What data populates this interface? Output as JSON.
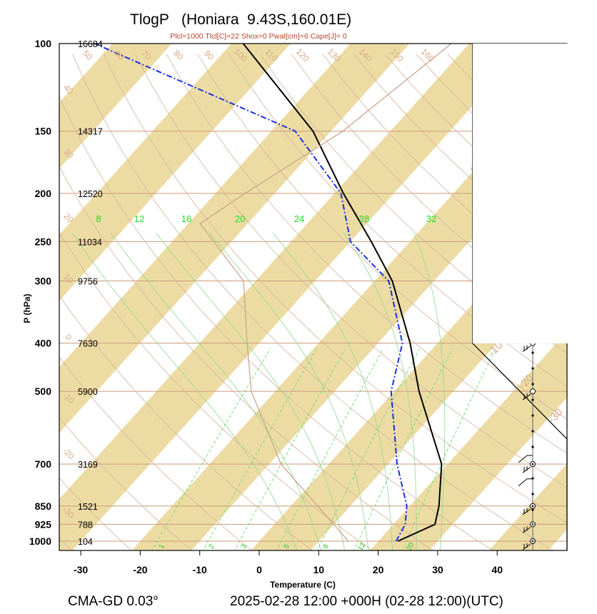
{
  "chart_data": {
    "type": "skew-t log-p",
    "title": "TlogP   (Honiara  9.43S,160.01E)",
    "subtitle": "Plcl=1000 Tlcl[C]=22 Shox=0 Pwat[cm]=6 Cape[J]= 0",
    "ylabel": "P (hPa)",
    "xlabel": "Temperature (C)",
    "footer_left": "CMA-GD 0.03°",
    "footer_right": "2025-02-28 12:00 +000H (02-28 12:00)(UTC)",
    "x_ticks": [
      "-30",
      "-20",
      "-10",
      "0",
      "10",
      "20",
      "30",
      "40"
    ],
    "x_values": [
      -30,
      -20,
      -10,
      0,
      10,
      20,
      30,
      40
    ],
    "pressure_levels": [
      {
        "p": 100,
        "label": "100",
        "height": "16684"
      },
      {
        "p": 150,
        "label": "150",
        "height": "14317"
      },
      {
        "p": 200,
        "label": "200",
        "height": "12520"
      },
      {
        "p": 250,
        "label": "250",
        "height": "11034"
      },
      {
        "p": 300,
        "label": "300",
        "height": "9756"
      },
      {
        "p": 400,
        "label": "400",
        "height": "7630"
      },
      {
        "p": 500,
        "label": "500",
        "height": "5900"
      },
      {
        "p": 700,
        "label": "700",
        "height": "3169"
      },
      {
        "p": 850,
        "label": "850",
        "height": "1521"
      },
      {
        "p": 925,
        "label": "925",
        "height": "788"
      },
      {
        "p": 1000,
        "label": "1000",
        "height": "104"
      }
    ],
    "isotherm_labels": [
      {
        "t": 30,
        "text": "30"
      },
      {
        "t": 20,
        "text": "20"
      },
      {
        "t": 10,
        "text": "10"
      },
      {
        "t": 0,
        "text": "0"
      },
      {
        "t": -10,
        "text": "-10"
      },
      {
        "t": -20,
        "text": "-20"
      },
      {
        "t": -30,
        "text": "-30"
      }
    ],
    "mixing_ratio_labels": [
      "8",
      "12",
      "16",
      "20",
      "24",
      "28",
      "32"
    ],
    "mixing_ratio_bottom_labels": [
      "1",
      "2",
      "3",
      "5",
      "8",
      "12",
      "20"
    ],
    "adiabat_top_labels": [
      "50",
      "60",
      "70",
      "80",
      "90",
      "100",
      "110",
      "120",
      "130",
      "140",
      "150",
      "160"
    ],
    "adiabat_left_labels": [
      "40",
      "30",
      "20",
      "10",
      "0",
      "-10",
      "-20",
      "-30"
    ],
    "series": [
      {
        "role": "temperature",
        "color": "#000000",
        "points": [
          {
            "p": 1000,
            "t": 23.3
          },
          {
            "p": 925,
            "t": 27.0
          },
          {
            "p": 850,
            "t": 24.9
          },
          {
            "p": 700,
            "t": 19.0
          },
          {
            "p": 500,
            "t": 4.2
          },
          {
            "p": 400,
            "t": -4.6
          },
          {
            "p": 300,
            "t": -17.0
          },
          {
            "p": 250,
            "t": -26.5
          },
          {
            "p": 200,
            "t": -38.5
          },
          {
            "p": 150,
            "t": -53.0
          },
          {
            "p": 100,
            "t": -78.0
          }
        ]
      },
      {
        "role": "dewpoint",
        "color": "#1a2fe0",
        "points": [
          {
            "p": 1000,
            "t": 23.0
          },
          {
            "p": 925,
            "t": 22.0
          },
          {
            "p": 850,
            "t": 19.5
          },
          {
            "p": 700,
            "t": 11.5
          },
          {
            "p": 500,
            "t": -0.5
          },
          {
            "p": 400,
            "t": -5.9
          },
          {
            "p": 300,
            "t": -17.6
          },
          {
            "p": 250,
            "t": -30.0
          },
          {
            "p": 200,
            "t": -38.9
          },
          {
            "p": 150,
            "t": -56.0
          },
          {
            "p": 100,
            "t": -103.0
          }
        ]
      },
      {
        "role": "parcel",
        "color": "#c8a088",
        "points": [
          {
            "p": 1000,
            "t": 15.0
          },
          {
            "p": 700,
            "t": -8.0
          },
          {
            "p": 500,
            "t": -24.0
          },
          {
            "p": 400,
            "t": -32.0
          },
          {
            "p": 300,
            "t": -42.0
          },
          {
            "p": 230,
            "t": -58.0
          },
          {
            "p": 200,
            "t": -55.0
          },
          {
            "p": 150,
            "t": -48.0
          },
          {
            "p": 100,
            "t": -43.0
          }
        ]
      }
    ],
    "wind_profile": [
      {
        "p": 100,
        "symbol": "barb"
      },
      {
        "p": 150,
        "symbol": "pennant"
      },
      {
        "p": 200,
        "symbol": "calm-circle"
      },
      {
        "p": 250,
        "symbol": "calm-circle"
      },
      {
        "p": 300,
        "symbol": "circle-dot"
      },
      {
        "p": 400,
        "symbol": "calm-circle"
      },
      {
        "p": 500,
        "symbol": "calm-circle"
      },
      {
        "p": 700,
        "symbol": "circle-dot"
      },
      {
        "p": 850,
        "symbol": "circle-dot"
      },
      {
        "p": 925,
        "symbol": "circle-dot"
      },
      {
        "p": 1000,
        "symbol": "circle-dot"
      }
    ],
    "colors": {
      "isotherm_band": "#ecdca4",
      "isobar": "#cc9a7a",
      "dry_adiabat": "#d4b09a",
      "moist_adiabat": "#8fd88f",
      "mixing_ratio": "#66dd66"
    },
    "grid": true
  }
}
